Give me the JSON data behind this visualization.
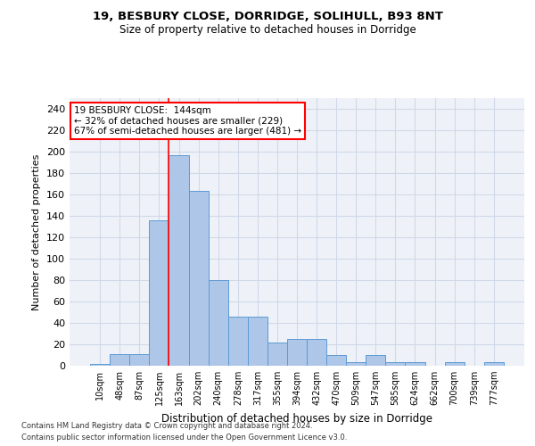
{
  "title1": "19, BESBURY CLOSE, DORRIDGE, SOLIHULL, B93 8NT",
  "title2": "Size of property relative to detached houses in Dorridge",
  "xlabel": "Distribution of detached houses by size in Dorridge",
  "ylabel": "Number of detached properties",
  "bar_values": [
    2,
    11,
    11,
    136,
    197,
    163,
    80,
    46,
    46,
    22,
    25,
    25,
    10,
    3,
    10,
    3,
    3,
    0,
    3,
    0,
    3
  ],
  "bin_labels": [
    "10sqm",
    "48sqm",
    "87sqm",
    "125sqm",
    "163sqm",
    "202sqm",
    "240sqm",
    "278sqm",
    "317sqm",
    "355sqm",
    "394sqm",
    "432sqm",
    "470sqm",
    "509sqm",
    "547sqm",
    "585sqm",
    "624sqm",
    "662sqm",
    "700sqm",
    "739sqm",
    "777sqm"
  ],
  "bar_color": "#aec6e8",
  "bar_edge_color": "#5b9bd5",
  "grid_color": "#d0d8e8",
  "bg_color": "#eef2f8",
  "red_line_x": 3.5,
  "annotation_text": "19 BESBURY CLOSE:  144sqm\n← 32% of detached houses are smaller (229)\n67% of semi-detached houses are larger (481) →",
  "annotation_box_color": "white",
  "annotation_box_edge": "red",
  "footnote1": "Contains HM Land Registry data © Crown copyright and database right 2024.",
  "footnote2": "Contains public sector information licensed under the Open Government Licence v3.0.",
  "ylim": [
    0,
    250
  ],
  "yticks": [
    0,
    20,
    40,
    60,
    80,
    100,
    120,
    140,
    160,
    180,
    200,
    220,
    240
  ]
}
